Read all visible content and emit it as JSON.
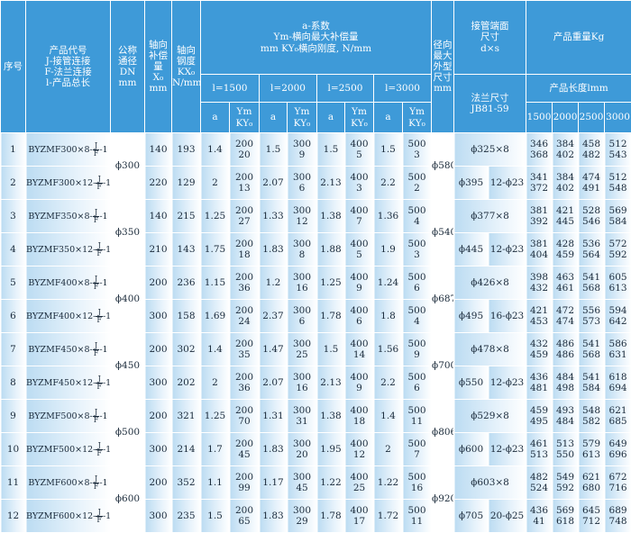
{
  "header": {
    "no": "序号",
    "code": [
      "产品代号",
      "J-接管连接",
      "F-法兰连接",
      "l-产品总长"
    ],
    "dn": [
      "公称",
      "通径",
      "DN",
      "mm"
    ],
    "x0": [
      "轴向",
      "补偿",
      "量",
      "X₀",
      "mm"
    ],
    "kx0": [
      "轴向",
      "钢度",
      "KX₀",
      "N/mm"
    ],
    "coef": [
      "a-系数",
      "Ym-横向最大补偿量",
      "mm KY₀横向刚度, N/mm"
    ],
    "lengths": [
      "l=1500",
      "l=2000",
      "l=2500",
      "l=3000"
    ],
    "a": "a",
    "ymky": [
      "Ym",
      "KY₀"
    ],
    "radial": [
      "径向",
      "最大",
      "外型",
      "尺寸",
      "mm"
    ],
    "pipe": [
      "接管端面",
      "尺寸",
      "d×s"
    ],
    "flange": [
      "法兰尺寸",
      "JB81-59"
    ],
    "weight": "产品重量Kg",
    "product_length": "产品长度lmm",
    "weight_lengths": [
      "1500",
      "2000",
      "2500",
      "3000"
    ]
  },
  "groups": [
    {
      "dn": "ϕ300",
      "radial": "ϕ580"
    },
    {
      "dn": "ϕ350",
      "radial": "ϕ540"
    },
    {
      "dn": "ϕ400",
      "radial": "ϕ687"
    },
    {
      "dn": "ϕ450",
      "radial": "ϕ700"
    },
    {
      "dn": "ϕ500",
      "radial": "ϕ806"
    },
    {
      "dn": "ϕ600",
      "radial": "ϕ920"
    }
  ],
  "rows": [
    {
      "no": 1,
      "code": [
        "BYZMF300×8-",
        "J",
        "F",
        "-1"
      ],
      "x0": 140,
      "kx0": 193,
      "l": [
        [
          1.4,
          200,
          20
        ],
        [
          1.5,
          300,
          9
        ],
        [
          1.5,
          400,
          5
        ],
        [
          1.5,
          500,
          3
        ]
      ],
      "pipe": "ϕ325×8",
      "weights": [
        [
          346,
          368
        ],
        [
          384,
          402
        ],
        [
          458,
          482
        ],
        [
          512,
          543
        ]
      ]
    },
    {
      "no": 2,
      "code": [
        "BYZMF300×12-",
        "J",
        "F",
        "-1"
      ],
      "x0": 220,
      "kx0": 129,
      "l": [
        [
          2,
          200,
          13
        ],
        [
          2.07,
          300,
          6
        ],
        [
          2.13,
          400,
          3
        ],
        [
          2.2,
          500,
          2
        ]
      ],
      "pipe": [
        "ϕ395",
        "12-ϕ23"
      ],
      "weights": [
        [
          341,
          372
        ],
        [
          384,
          402
        ],
        [
          474,
          491
        ],
        [
          512,
          548
        ]
      ]
    },
    {
      "no": 3,
      "code": [
        "BYZMF350×8-",
        "J",
        "F",
        "-1"
      ],
      "x0": 140,
      "kx0": 215,
      "l": [
        [
          1.25,
          200,
          27
        ],
        [
          1.33,
          300,
          12
        ],
        [
          1.38,
          400,
          7
        ],
        [
          1.36,
          500,
          4
        ]
      ],
      "pipe": "ϕ377×8",
      "weights": [
        [
          381,
          392
        ],
        [
          421,
          445
        ],
        [
          528,
          546
        ],
        [
          569,
          584
        ]
      ]
    },
    {
      "no": 4,
      "code": [
        "BYZMF350×12-",
        "J",
        "F",
        "-1"
      ],
      "x0": 210,
      "kx0": 143,
      "l": [
        [
          1.75,
          200,
          18
        ],
        [
          1.83,
          300,
          8
        ],
        [
          1.88,
          400,
          5
        ],
        [
          1.9,
          500,
          3
        ]
      ],
      "pipe": [
        "ϕ445",
        "12-ϕ23"
      ],
      "weights": [
        [
          381,
          404
        ],
        [
          428,
          459
        ],
        [
          536,
          564
        ],
        [
          572,
          592
        ]
      ]
    },
    {
      "no": 5,
      "code": [
        "BYZMF400×8-",
        "J",
        "F",
        "-1"
      ],
      "x0": 200,
      "kx0": 236,
      "l": [
        [
          1.15,
          200,
          36
        ],
        [
          1.2,
          300,
          16
        ],
        [
          1.25,
          400,
          9
        ],
        [
          1.24,
          500,
          6
        ]
      ],
      "pipe": "ϕ426×8",
      "weights": [
        [
          398,
          432
        ],
        [
          463,
          461
        ],
        [
          541,
          568
        ],
        [
          605,
          613
        ]
      ]
    },
    {
      "no": 6,
      "code": [
        "BYZMF400×12-",
        "J",
        "F",
        "-1"
      ],
      "x0": 300,
      "kx0": 158,
      "l": [
        [
          1.69,
          200,
          24
        ],
        [
          2.37,
          300,
          6
        ],
        [
          1.78,
          400,
          6
        ],
        [
          1.8,
          500,
          4
        ]
      ],
      "pipe": [
        "ϕ495",
        "16-ϕ23"
      ],
      "weights": [
        [
          421,
          453
        ],
        [
          472,
          474
        ],
        [
          556,
          573
        ],
        [
          594,
          642
        ]
      ]
    },
    {
      "no": 7,
      "code": [
        "BYZMF450×8-",
        "J",
        "F",
        "-1"
      ],
      "x0": 200,
      "kx0": 302,
      "l": [
        [
          1.4,
          200,
          35
        ],
        [
          1.47,
          300,
          25
        ],
        [
          1.5,
          400,
          14
        ],
        [
          1.56,
          500,
          9
        ]
      ],
      "pipe": "ϕ478×8",
      "weights": [
        [
          432,
          459
        ],
        [
          486,
          486
        ],
        [
          541,
          568
        ],
        [
          586,
          631
        ]
      ]
    },
    {
      "no": 8,
      "code": [
        "BYZMF450×12-",
        "J",
        "F",
        "-1"
      ],
      "x0": 300,
      "kx0": 202,
      "l": [
        [
          2,
          200,
          36
        ],
        [
          2.07,
          300,
          16
        ],
        [
          2.13,
          400,
          9
        ],
        [
          2.2,
          500,
          6
        ]
      ],
      "pipe": [
        "ϕ550",
        "12-ϕ23"
      ],
      "weights": [
        [
          436,
          481
        ],
        [
          484,
          498
        ],
        [
          541,
          584
        ],
        [
          618,
          694
        ]
      ]
    },
    {
      "no": 9,
      "code": [
        "BYZMF500×8-",
        "J",
        "F",
        "-1"
      ],
      "x0": 200,
      "kx0": 321,
      "l": [
        [
          1.25,
          200,
          70
        ],
        [
          1.31,
          300,
          31
        ],
        [
          1.38,
          400,
          18
        ],
        [
          1.4,
          500,
          11
        ]
      ],
      "pipe": "ϕ529×8",
      "weights": [
        [
          459,
          495
        ],
        [
          493,
          484
        ],
        [
          548,
          582
        ],
        [
          621,
          685
        ]
      ]
    },
    {
      "no": 10,
      "code": [
        "BYZMF500×12-",
        "J",
        "F",
        "-1"
      ],
      "x0": 300,
      "kx0": 214,
      "l": [
        [
          1.7,
          200,
          45
        ],
        [
          1.83,
          300,
          20
        ],
        [
          1.95,
          400,
          12
        ],
        [
          2,
          500,
          7
        ]
      ],
      "pipe": [
        "ϕ600",
        "12-ϕ23"
      ],
      "weights": [
        [
          461,
          513
        ],
        [
          513,
          550
        ],
        [
          579,
          613
        ],
        [
          649,
          696
        ]
      ]
    },
    {
      "no": 11,
      "code": [
        "BYZMF600×8-",
        "J",
        "F",
        "-1"
      ],
      "x0": 200,
      "kx0": 352,
      "l": [
        [
          1.1,
          200,
          99
        ],
        [
          1.17,
          300,
          45
        ],
        [
          1.22,
          400,
          25
        ],
        [
          1.22,
          500,
          16
        ]
      ],
      "pipe": "ϕ603×8",
      "weights": [
        [
          482,
          524
        ],
        [
          549,
          592
        ],
        [
          621,
          680
        ],
        [
          672,
          716
        ]
      ]
    },
    {
      "no": 12,
      "code": [
        "BYZMF600×12-",
        "J",
        "F",
        "-1"
      ],
      "x0": 300,
      "kx0": 235,
      "l": [
        [
          1.5,
          200,
          65
        ],
        [
          1.83,
          300,
          29
        ],
        [
          1.78,
          400,
          17
        ],
        [
          1.72,
          500,
          11
        ]
      ],
      "pipe": [
        "ϕ705",
        "20-ϕ25"
      ],
      "weights": [
        [
          436,
          41
        ],
        [
          569,
          618
        ],
        [
          645,
          712
        ],
        [
          689,
          748
        ]
      ]
    }
  ]
}
